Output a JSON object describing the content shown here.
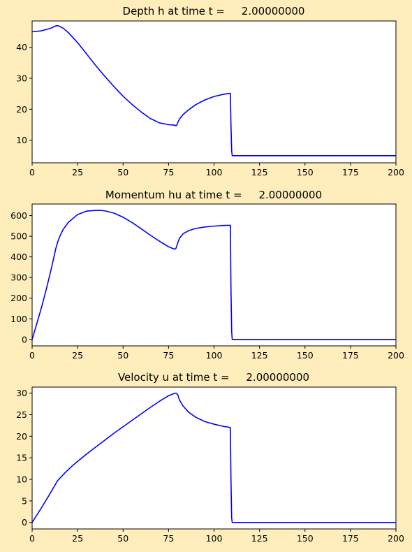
{
  "background_color": "#ffeebb",
  "line_color": "#0000ff",
  "chart_data": [
    {
      "type": "line",
      "title": "Depth h at time t =     2.00000000",
      "xlim": [
        0,
        200
      ],
      "ylim": [
        2.7,
        48.5
      ],
      "xticks": [
        0,
        25,
        50,
        75,
        100,
        125,
        150,
        175,
        200
      ],
      "yticks": [
        10,
        20,
        30,
        40
      ],
      "series": [
        {
          "x": [
            0,
            5,
            10,
            13,
            14,
            15,
            17,
            20,
            25,
            30,
            35,
            40,
            45,
            50,
            55,
            60,
            65,
            70,
            75,
            78,
            79,
            79.5,
            80,
            81,
            83,
            86,
            90,
            95,
            100,
            105,
            108,
            109,
            109.3,
            109.7,
            110,
            115,
            125,
            150,
            175,
            200
          ],
          "y": [
            45,
            45.3,
            46.1,
            46.9,
            47.0,
            46.8,
            46.2,
            44.7,
            41.5,
            37.8,
            34.1,
            30.6,
            27.3,
            24.2,
            21.5,
            19.1,
            17.0,
            15.6,
            15.0,
            14.9,
            14.7,
            14.8,
            15.6,
            16.8,
            18.3,
            19.8,
            21.5,
            23.0,
            24.1,
            24.8,
            25.1,
            25.1,
            15.0,
            6.5,
            5.0,
            5.0,
            5.0,
            5.0,
            5.0,
            5.0
          ]
        }
      ]
    },
    {
      "type": "line",
      "title": "Momentum hu at time t =     2.00000000",
      "xlim": [
        0,
        200
      ],
      "ylim": [
        -31,
        656
      ],
      "xticks": [
        0,
        25,
        50,
        75,
        100,
        125,
        150,
        175,
        200
      ],
      "yticks": [
        0,
        100,
        200,
        300,
        400,
        500,
        600
      ],
      "series": [
        {
          "x": [
            0,
            2,
            5,
            8,
            11,
            13,
            14,
            15,
            17,
            20,
            25,
            30,
            35,
            38,
            40,
            45,
            50,
            55,
            60,
            65,
            70,
            75,
            78,
            79,
            80,
            81,
            83,
            86,
            90,
            95,
            100,
            105,
            108,
            109,
            109.3,
            109.7,
            110,
            115,
            125,
            150,
            175,
            200
          ],
          "y": [
            0,
            60,
            150,
            250,
            360,
            440,
            470,
            495,
            532,
            568,
            605,
            622,
            625,
            625,
            623,
            612,
            592,
            566,
            536,
            505,
            476,
            449,
            438,
            440,
            466,
            490,
            512,
            527,
            538,
            545,
            549,
            552,
            553,
            553,
            250,
            40,
            0,
            0,
            0,
            0,
            0,
            0
          ]
        }
      ]
    },
    {
      "type": "line",
      "title": "Velocity u at time t =     2.00000000",
      "xlim": [
        0,
        200
      ],
      "ylim": [
        -1.5,
        31.4
      ],
      "xticks": [
        0,
        25,
        50,
        75,
        100,
        125,
        150,
        175,
        200
      ],
      "yticks": [
        0,
        5,
        10,
        15,
        20,
        25,
        30
      ],
      "series": [
        {
          "x": [
            0,
            5,
            10,
            14,
            18,
            22,
            26,
            30,
            35,
            40,
            45,
            50,
            55,
            60,
            65,
            70,
            75,
            78,
            79,
            80,
            81,
            83,
            86,
            90,
            95,
            100,
            105,
            108,
            109,
            109.3,
            109.7,
            110,
            115,
            125,
            150,
            175,
            200
          ],
          "y": [
            0,
            3.3,
            6.8,
            9.7,
            11.5,
            13.1,
            14.5,
            15.9,
            17.5,
            19.1,
            20.7,
            22.2,
            23.7,
            25.2,
            26.7,
            28.1,
            29.4,
            29.9,
            30.0,
            29.7,
            28.4,
            27.0,
            25.6,
            24.4,
            23.4,
            22.8,
            22.3,
            22.1,
            22.0,
            10.0,
            1.0,
            0,
            0,
            0,
            0,
            0,
            0
          ]
        }
      ]
    }
  ]
}
